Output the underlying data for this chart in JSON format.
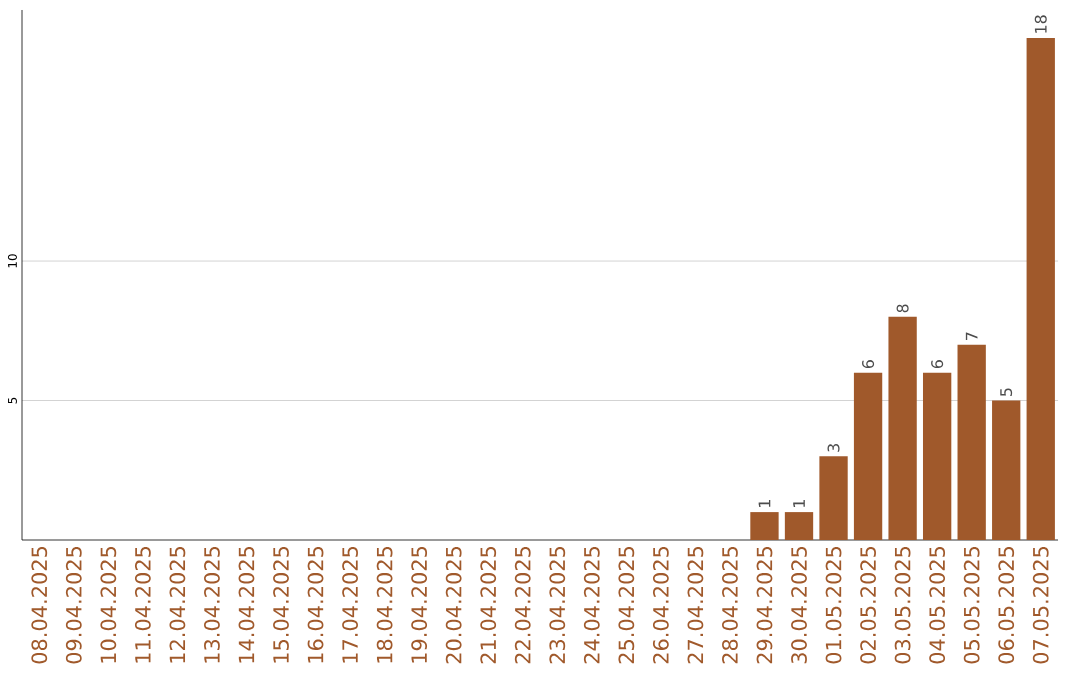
{
  "chart_data": {
    "type": "bar",
    "categories": [
      "08.04.2025",
      "09.04.2025",
      "10.04.2025",
      "11.04.2025",
      "12.04.2025",
      "13.04.2025",
      "14.04.2025",
      "15.04.2025",
      "16.04.2025",
      "17.04.2025",
      "18.04.2025",
      "19.04.2025",
      "20.04.2025",
      "21.04.2025",
      "22.04.2025",
      "23.04.2025",
      "24.04.2025",
      "25.04.2025",
      "26.04.2025",
      "27.04.2025",
      "28.04.2025",
      "29.04.2025",
      "30.04.2025",
      "01.05.2025",
      "02.05.2025",
      "03.05.2025",
      "04.05.2025",
      "05.05.2025",
      "06.05.2025",
      "07.05.2025"
    ],
    "values": [
      0,
      0,
      0,
      0,
      0,
      0,
      0,
      0,
      0,
      0,
      0,
      0,
      0,
      0,
      0,
      0,
      0,
      0,
      0,
      0,
      0,
      1,
      1,
      3,
      6,
      8,
      6,
      7,
      5,
      18
    ],
    "value_labels": [
      null,
      null,
      null,
      null,
      null,
      null,
      null,
      null,
      null,
      null,
      null,
      null,
      null,
      null,
      null,
      null,
      null,
      null,
      null,
      null,
      null,
      "1",
      "1",
      "3",
      "6",
      "8",
      "6",
      "7",
      "5",
      "18"
    ],
    "color": "#a0592b",
    "ylim": [
      0,
      19
    ],
    "yticks": [
      5,
      10
    ],
    "grid": "y"
  }
}
